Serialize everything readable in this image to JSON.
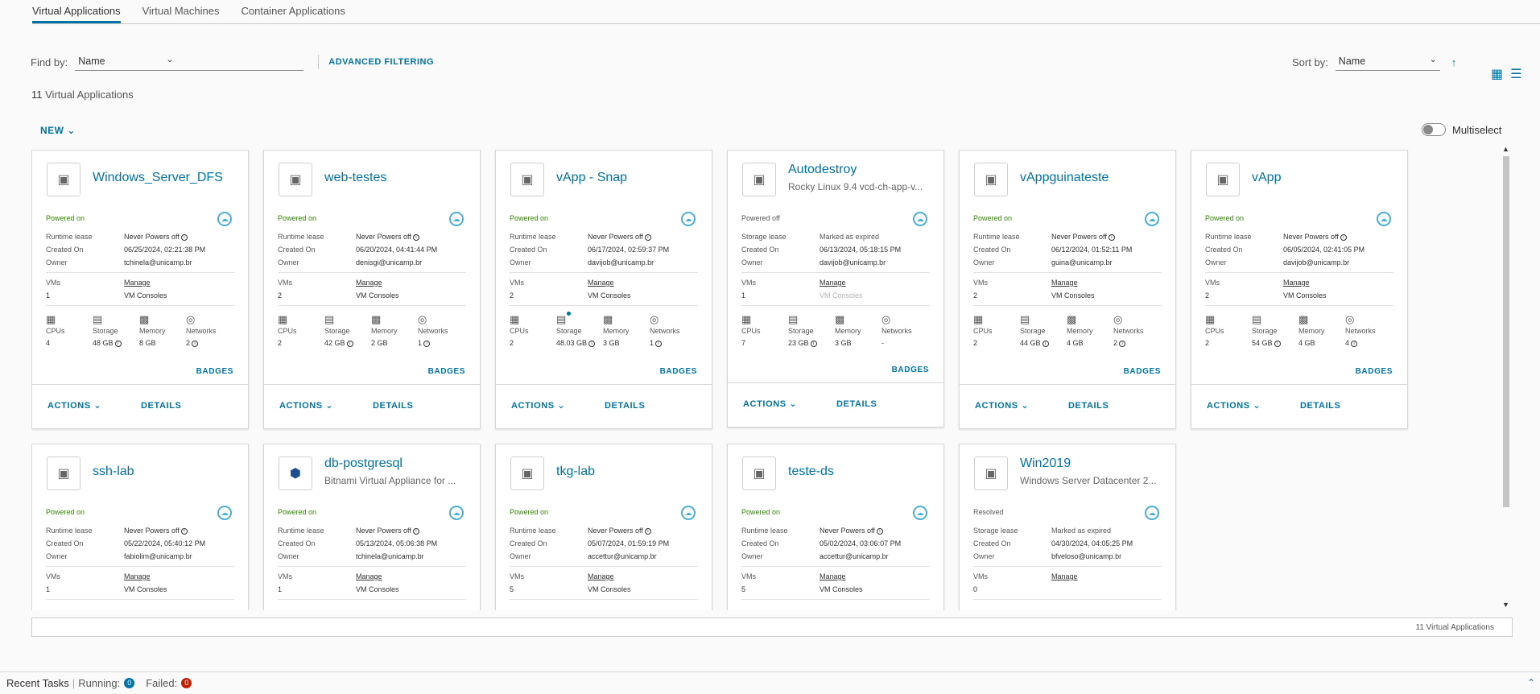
{
  "tabs": [
    {
      "label": "Virtual Applications",
      "active": true
    },
    {
      "label": "Virtual Machines",
      "active": false
    },
    {
      "label": "Container Applications",
      "active": false
    }
  ],
  "filter": {
    "find_label": "Find by:",
    "find_value": "Name",
    "advanced": "ADVANCED FILTERING"
  },
  "sort": {
    "label": "Sort by:",
    "value": "Name"
  },
  "summary": {
    "count": "11",
    "label": "Virtual Applications"
  },
  "toolbar": {
    "new": "NEW",
    "multiselect": "Multiselect"
  },
  "labels": {
    "runtime_lease": "Runtime lease",
    "storage_lease": "Storage lease",
    "created_on": "Created On",
    "owner": "Owner",
    "vms": "VMs",
    "manage": "Manage",
    "vm_consoles": "VM Consoles",
    "cpus": "CPUs",
    "storage": "Storage",
    "memory": "Memory",
    "networks": "Networks",
    "badges": "BADGES",
    "actions": "ACTIONS",
    "details": "DETAILS"
  },
  "cards": [
    {
      "name": "Windows_Server_DFS",
      "subtitle": "",
      "status": "Powered on",
      "lease_type": "runtime",
      "lease": "Never Powers off",
      "created": "06/25/2024, 02:21:38 PM",
      "owner": "tchinela@unicamp.br",
      "vms": "1",
      "cpus": "4",
      "storage": "48 GB",
      "memory": "8 GB",
      "networks": "2"
    },
    {
      "name": "web-testes",
      "subtitle": "",
      "status": "Powered on",
      "lease_type": "runtime",
      "lease": "Never Powers off",
      "created": "06/20/2024, 04:41:44 PM",
      "owner": "denisgi@unicamp.br",
      "vms": "2",
      "cpus": "2",
      "storage": "42 GB",
      "memory": "2 GB",
      "networks": "1"
    },
    {
      "name": "vApp - Snap",
      "subtitle": "",
      "status": "Powered on",
      "lease_type": "runtime",
      "lease": "Never Powers off",
      "created": "06/17/2024, 02:59:37 PM",
      "owner": "davijob@unicamp.br",
      "vms": "2",
      "cpus": "2",
      "storage": "48.03 GB",
      "memory": "3 GB",
      "networks": "1"
    },
    {
      "name": "Autodestroy",
      "subtitle": "Rocky Linux 9.4 vcd-ch-app-v...",
      "status": "Powered off",
      "lease_type": "storage",
      "lease": "Marked as expired",
      "created": "06/13/2024, 05:18:15 PM",
      "owner": "davijob@unicamp.br",
      "vms": "1",
      "cpus": "7",
      "storage": "23 GB",
      "memory": "3 GB",
      "networks": "-"
    },
    {
      "name": "vAppguinateste",
      "subtitle": "",
      "status": "Powered on",
      "lease_type": "runtime",
      "lease": "Never Powers off",
      "created": "06/12/2024, 01:52:11 PM",
      "owner": "guina@unicamp.br",
      "vms": "2",
      "cpus": "2",
      "storage": "44 GB",
      "memory": "4 GB",
      "networks": "2"
    },
    {
      "name": "vApp",
      "subtitle": "",
      "status": "Powered on",
      "lease_type": "runtime",
      "lease": "Never Powers off",
      "created": "06/05/2024, 02:41:05 PM",
      "owner": "davijob@unicamp.br",
      "vms": "2",
      "cpus": "2",
      "storage": "54 GB",
      "memory": "4 GB",
      "networks": "4"
    },
    {
      "name": "ssh-lab",
      "subtitle": "",
      "status": "Powered on",
      "lease_type": "runtime",
      "lease": "Never Powers off",
      "created": "05/22/2024, 05:40:12 PM",
      "owner": "fabiolim@unicamp.br",
      "vms": "1"
    },
    {
      "name": "db-postgresql",
      "subtitle": "Bitnami Virtual Appliance for ...",
      "status": "Powered on",
      "lease_type": "runtime",
      "lease": "Never Powers off",
      "created": "05/13/2024, 05:06:38 PM",
      "owner": "tchinela@unicamp.br",
      "vms": "1"
    },
    {
      "name": "tkg-lab",
      "subtitle": "",
      "status": "Powered on",
      "lease_type": "runtime",
      "lease": "Never Powers off",
      "created": "05/07/2024, 01:59:19 PM",
      "owner": "accettur@unicamp.br",
      "vms": "5"
    },
    {
      "name": "teste-ds",
      "subtitle": "",
      "status": "Powered on",
      "lease_type": "runtime",
      "lease": "Never Powers off",
      "created": "05/02/2024, 03:06:07 PM",
      "owner": "accettur@unicamp.br",
      "vms": "5"
    },
    {
      "name": "Win2019",
      "subtitle": "Windows Server Datacenter 2...",
      "status": "Resolved",
      "lease_type": "storage",
      "lease": "Marked as expired",
      "created": "04/30/2024, 04:05:25 PM",
      "owner": "bfveloso@unicamp.br",
      "vms": "0"
    }
  ],
  "footer": {
    "count_text": "11 Virtual Applications"
  },
  "tasks": {
    "title": "Recent Tasks",
    "running_label": "Running:",
    "running_count": "0",
    "failed_label": "Failed:",
    "failed_count": "0"
  }
}
